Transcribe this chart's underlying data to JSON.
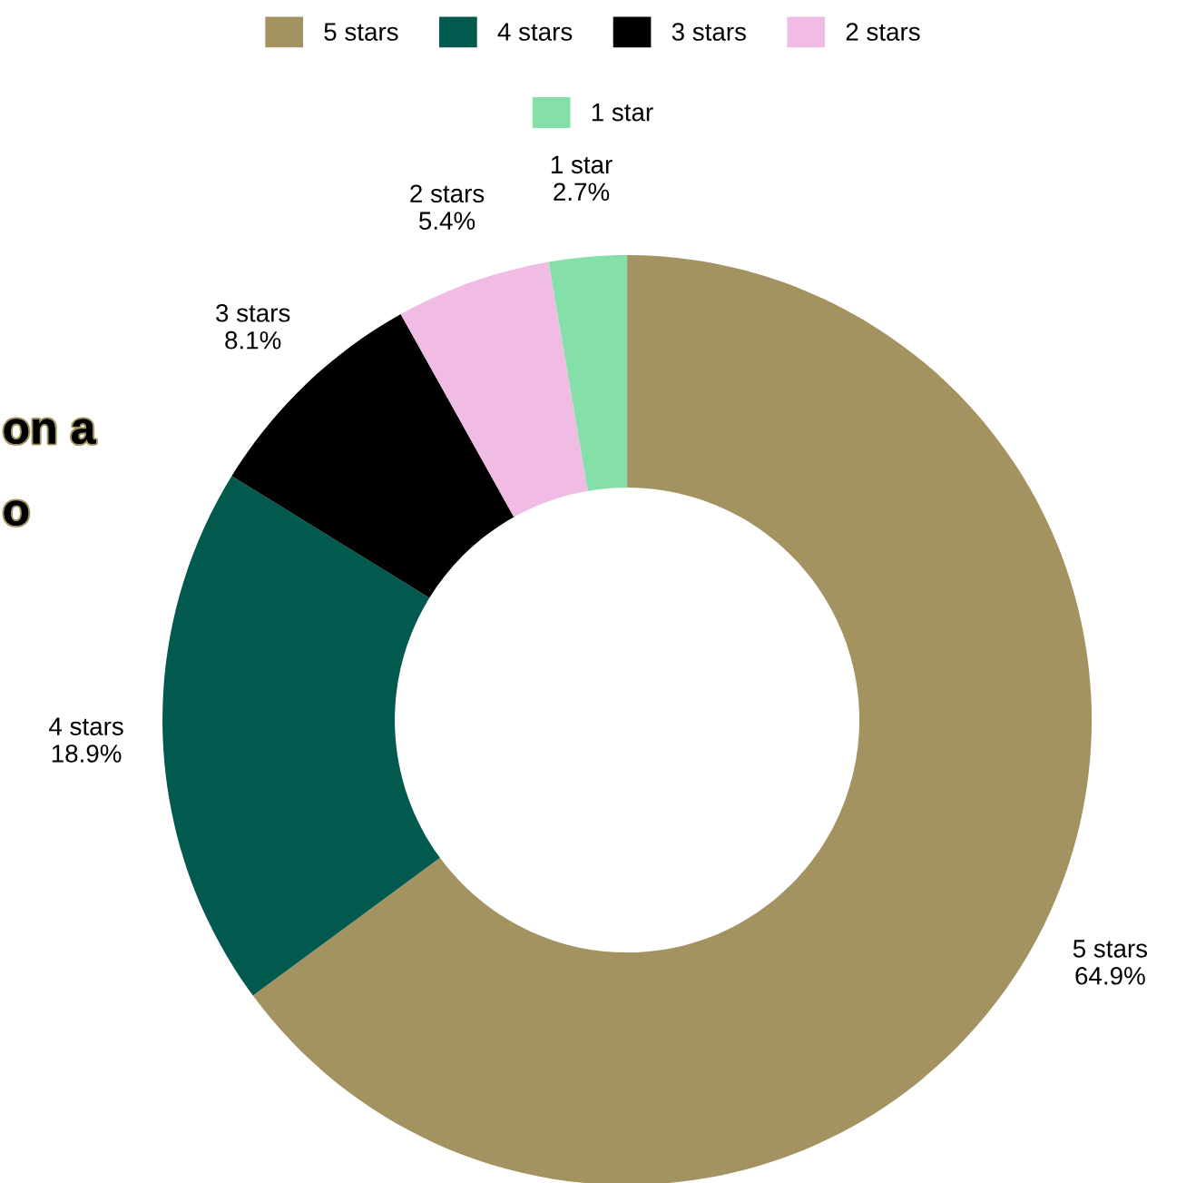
{
  "chart_data": {
    "type": "donut",
    "categories": [
      "5 stars",
      "4 stars",
      "3 stars",
      "2 stars",
      "1 star"
    ],
    "values": [
      64.9,
      18.9,
      8.1,
      5.4,
      2.7
    ],
    "value_labels": [
      "64.9%",
      "18.9%",
      "8.1%",
      "5.4%",
      "2.7%"
    ],
    "colors": [
      "#a39361",
      "#02594e",
      "#000000",
      "#f0bce4",
      "#84e0a8"
    ],
    "legend": "top",
    "annotations": [
      "on a",
      "o"
    ]
  }
}
